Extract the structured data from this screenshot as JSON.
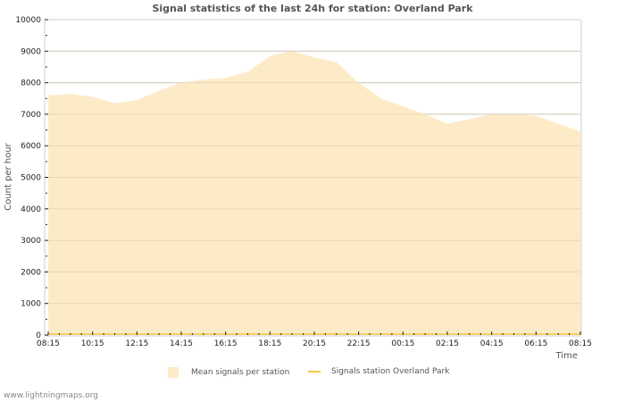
{
  "chart_data": {
    "type": "area",
    "title": "Signal statistics of the last 24h for station: Overland Park",
    "xlabel": "Time",
    "ylabel": "Count per hour",
    "ylim": [
      0,
      10000
    ],
    "yticks": [
      0,
      1000,
      2000,
      3000,
      4000,
      5000,
      6000,
      7000,
      8000,
      9000,
      10000
    ],
    "xticks": [
      "08:15",
      "10:15",
      "12:15",
      "14:15",
      "16:15",
      "18:15",
      "20:15",
      "22:15",
      "00:15",
      "02:15",
      "04:15",
      "06:15",
      "08:15"
    ],
    "grid": true,
    "legend_position": "bottom",
    "x": [
      "08:15",
      "09:15",
      "10:15",
      "11:15",
      "12:15",
      "13:15",
      "14:15",
      "15:15",
      "16:15",
      "17:15",
      "18:15",
      "19:15",
      "20:15",
      "21:15",
      "22:15",
      "23:15",
      "00:15",
      "01:15",
      "02:15",
      "03:15",
      "04:15",
      "05:15",
      "06:15",
      "07:15",
      "08:15"
    ],
    "series": [
      {
        "name": "Mean signals per station",
        "style": "area",
        "color": "#fdebc8",
        "values": [
          7600,
          7650,
          7550,
          7350,
          7450,
          7750,
          8000,
          8100,
          8150,
          8350,
          8850,
          9000,
          8800,
          8650,
          8000,
          7500,
          7250,
          7000,
          6700,
          6850,
          7000,
          7000,
          6950,
          6700,
          6450
        ]
      },
      {
        "name": "Signals station Overland Park",
        "style": "line",
        "color": "#f5c842",
        "values": [
          0,
          0,
          0,
          0,
          0,
          0,
          0,
          0,
          0,
          0,
          0,
          0,
          0,
          0,
          0,
          0,
          0,
          0,
          0,
          0,
          0,
          0,
          0,
          0,
          0
        ]
      }
    ]
  },
  "legend": {
    "items": [
      {
        "label": "Mean signals per station"
      },
      {
        "label": "Signals station Overland Park"
      }
    ]
  },
  "footer": {
    "text": "www.lightningmaps.org"
  }
}
